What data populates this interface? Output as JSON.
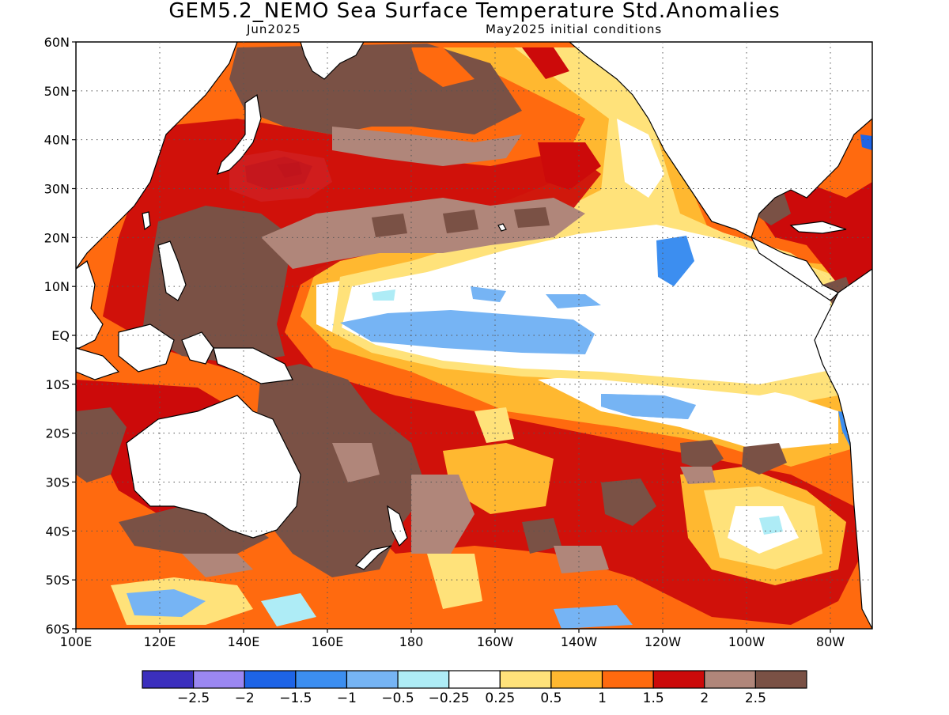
{
  "title": "GEM5.2_NEMO Sea Surface Temperature Std.Anomalies",
  "subtitle_left": "Jun2025",
  "subtitle_right": "May2025 initial conditions",
  "lat_labels": [
    "60N",
    "50N",
    "40N",
    "30N",
    "20N",
    "10N",
    "EQ",
    "10S",
    "20S",
    "30S",
    "40S",
    "50S",
    "60S"
  ],
  "lon_labels": [
    "100E",
    "120E",
    "140E",
    "160E",
    "180",
    "160W",
    "140W",
    "120W",
    "100W",
    "80W"
  ],
  "colorbar": {
    "colors": [
      "#3b2fbd",
      "#9b87f2",
      "#1e64e6",
      "#3c8ef0",
      "#76b4f4",
      "#aeecf6",
      "#ffffff",
      "#ffe27a",
      "#ffb830",
      "#ff6a0f",
      "#cc0a0a",
      "#b0867a",
      "#7a5145"
    ],
    "labels": [
      "−2.5",
      "−2",
      "−1.5",
      "−1",
      "−0.5",
      "−0.25",
      "0.25",
      "0.5",
      "1",
      "1.5",
      "2",
      "2.5"
    ]
  }
}
